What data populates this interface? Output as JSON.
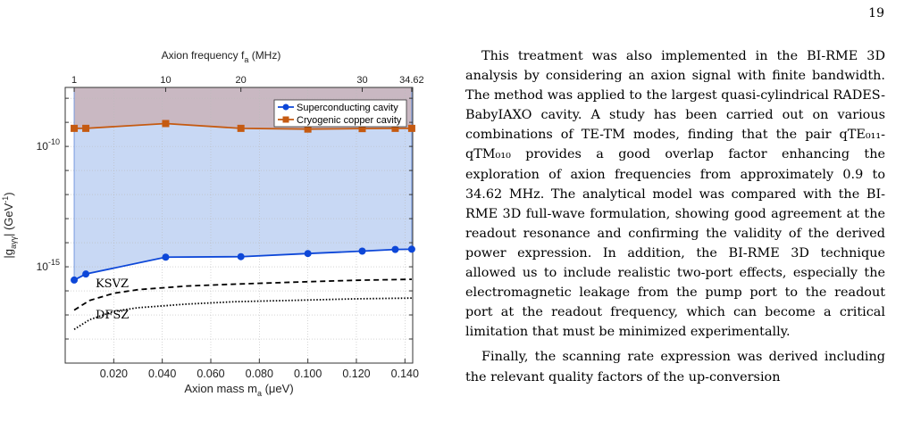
{
  "page": {
    "number": "19"
  },
  "paragraphs": [
    "This treatment was also implemented in the BI-RME 3D analysis by considering an axion signal with finite bandwidth. The method was applied to the largest quasi-cylindrical RADES-BabyIAXO cavity. A study has been carried out on various combinations of TE-TM modes, finding that the pair qTE₀₁₁-qTM₀₁₀ provides a good overlap factor enhancing the exploration of axion frequencies from approximately 0.9 to 34.62 MHz. The analytical model was compared with the BI-RME 3D full-wave formulation, showing good agreement at the readout resonance and confirming the validity of the derived power expression. In addition, the BI-RME 3D technique allowed us to include realistic two-port effects, especially the electromagnetic leakage from the pump port to the readout port at the readout frequency, which can become a critical limitation that must be minimized experimentally.",
    "Finally, the scanning rate expression was derived including the relevant quality factors of the up-conversion"
  ],
  "chart_data": {
    "type": "line",
    "title": "",
    "top_xlabel": "Axion frequency f",
    "top_xlabel_sub": "a",
    "top_xlabel_unit": " (MHz)",
    "top_ticks": [
      "1",
      "10",
      "20",
      "30",
      "34.62"
    ],
    "xlabel": "Axion mass m",
    "xlabel_sub": "a",
    "xlabel_unit": " (μeV)",
    "ylabel": "|g",
    "ylabel_sub": "aγγ",
    "ylabel_unit": "| (GeV",
    "ylabel_exp": "-1",
    "ylabel_end": ")",
    "xlim": [
      0.0,
      0.1432
    ],
    "ylog_decades": [
      -19,
      -7.55
    ],
    "xticks": [
      "0.020",
      "0.040",
      "0.060",
      "0.080",
      "0.100",
      "0.120",
      "0.140"
    ],
    "xtick_values": [
      0.02,
      0.04,
      0.06,
      0.08,
      0.1,
      0.12,
      0.14
    ],
    "ytick_exponents": [
      -15,
      -10
    ],
    "ytick_base": "10",
    "legend_position": "top-right",
    "grid": true,
    "series": [
      {
        "name": "Superconducting cavity",
        "color": "#0d47d8",
        "marker": "circle",
        "x": [
          0.0037,
          0.0085,
          0.0414,
          0.0724,
          0.1,
          0.1224,
          0.136,
          0.1428
        ],
        "y_exp": [
          -15.55,
          -15.3,
          -14.6,
          -14.58,
          -14.45,
          -14.35,
          -14.28,
          -14.27
        ]
      },
      {
        "name": "Cryogenic copper cavity",
        "color": "#c55a11",
        "marker": "square",
        "x": [
          0.0037,
          0.0085,
          0.0414,
          0.0724,
          0.1,
          0.1224,
          0.136,
          0.1428
        ],
        "y_exp": [
          -9.25,
          -9.25,
          -9.05,
          -9.25,
          -9.28,
          -9.26,
          -9.25,
          -9.25
        ]
      }
    ],
    "models": [
      {
        "name": "KSVZ",
        "style": "dashed",
        "x": [
          0.0037,
          0.01,
          0.02,
          0.03,
          0.05,
          0.07,
          0.1,
          0.12,
          0.1428
        ],
        "y_exp": [
          -16.8,
          -16.4,
          -16.1,
          -15.95,
          -15.8,
          -15.72,
          -15.62,
          -15.56,
          -15.52
        ]
      },
      {
        "name": "DFSZ",
        "style": "dotted",
        "x": [
          0.0037,
          0.01,
          0.02,
          0.03,
          0.05,
          0.07,
          0.1,
          0.12,
          0.1428
        ],
        "y_exp": [
          -17.6,
          -17.2,
          -16.85,
          -16.7,
          -16.55,
          -16.45,
          -16.38,
          -16.33,
          -16.3
        ]
      }
    ],
    "model_labels": {
      "ksvz": "KSVZ",
      "dfsz": "DFSZ"
    },
    "excluded_region_colors": {
      "copper": "#c9b8c2",
      "superconducting": "#c8d8f4"
    }
  }
}
